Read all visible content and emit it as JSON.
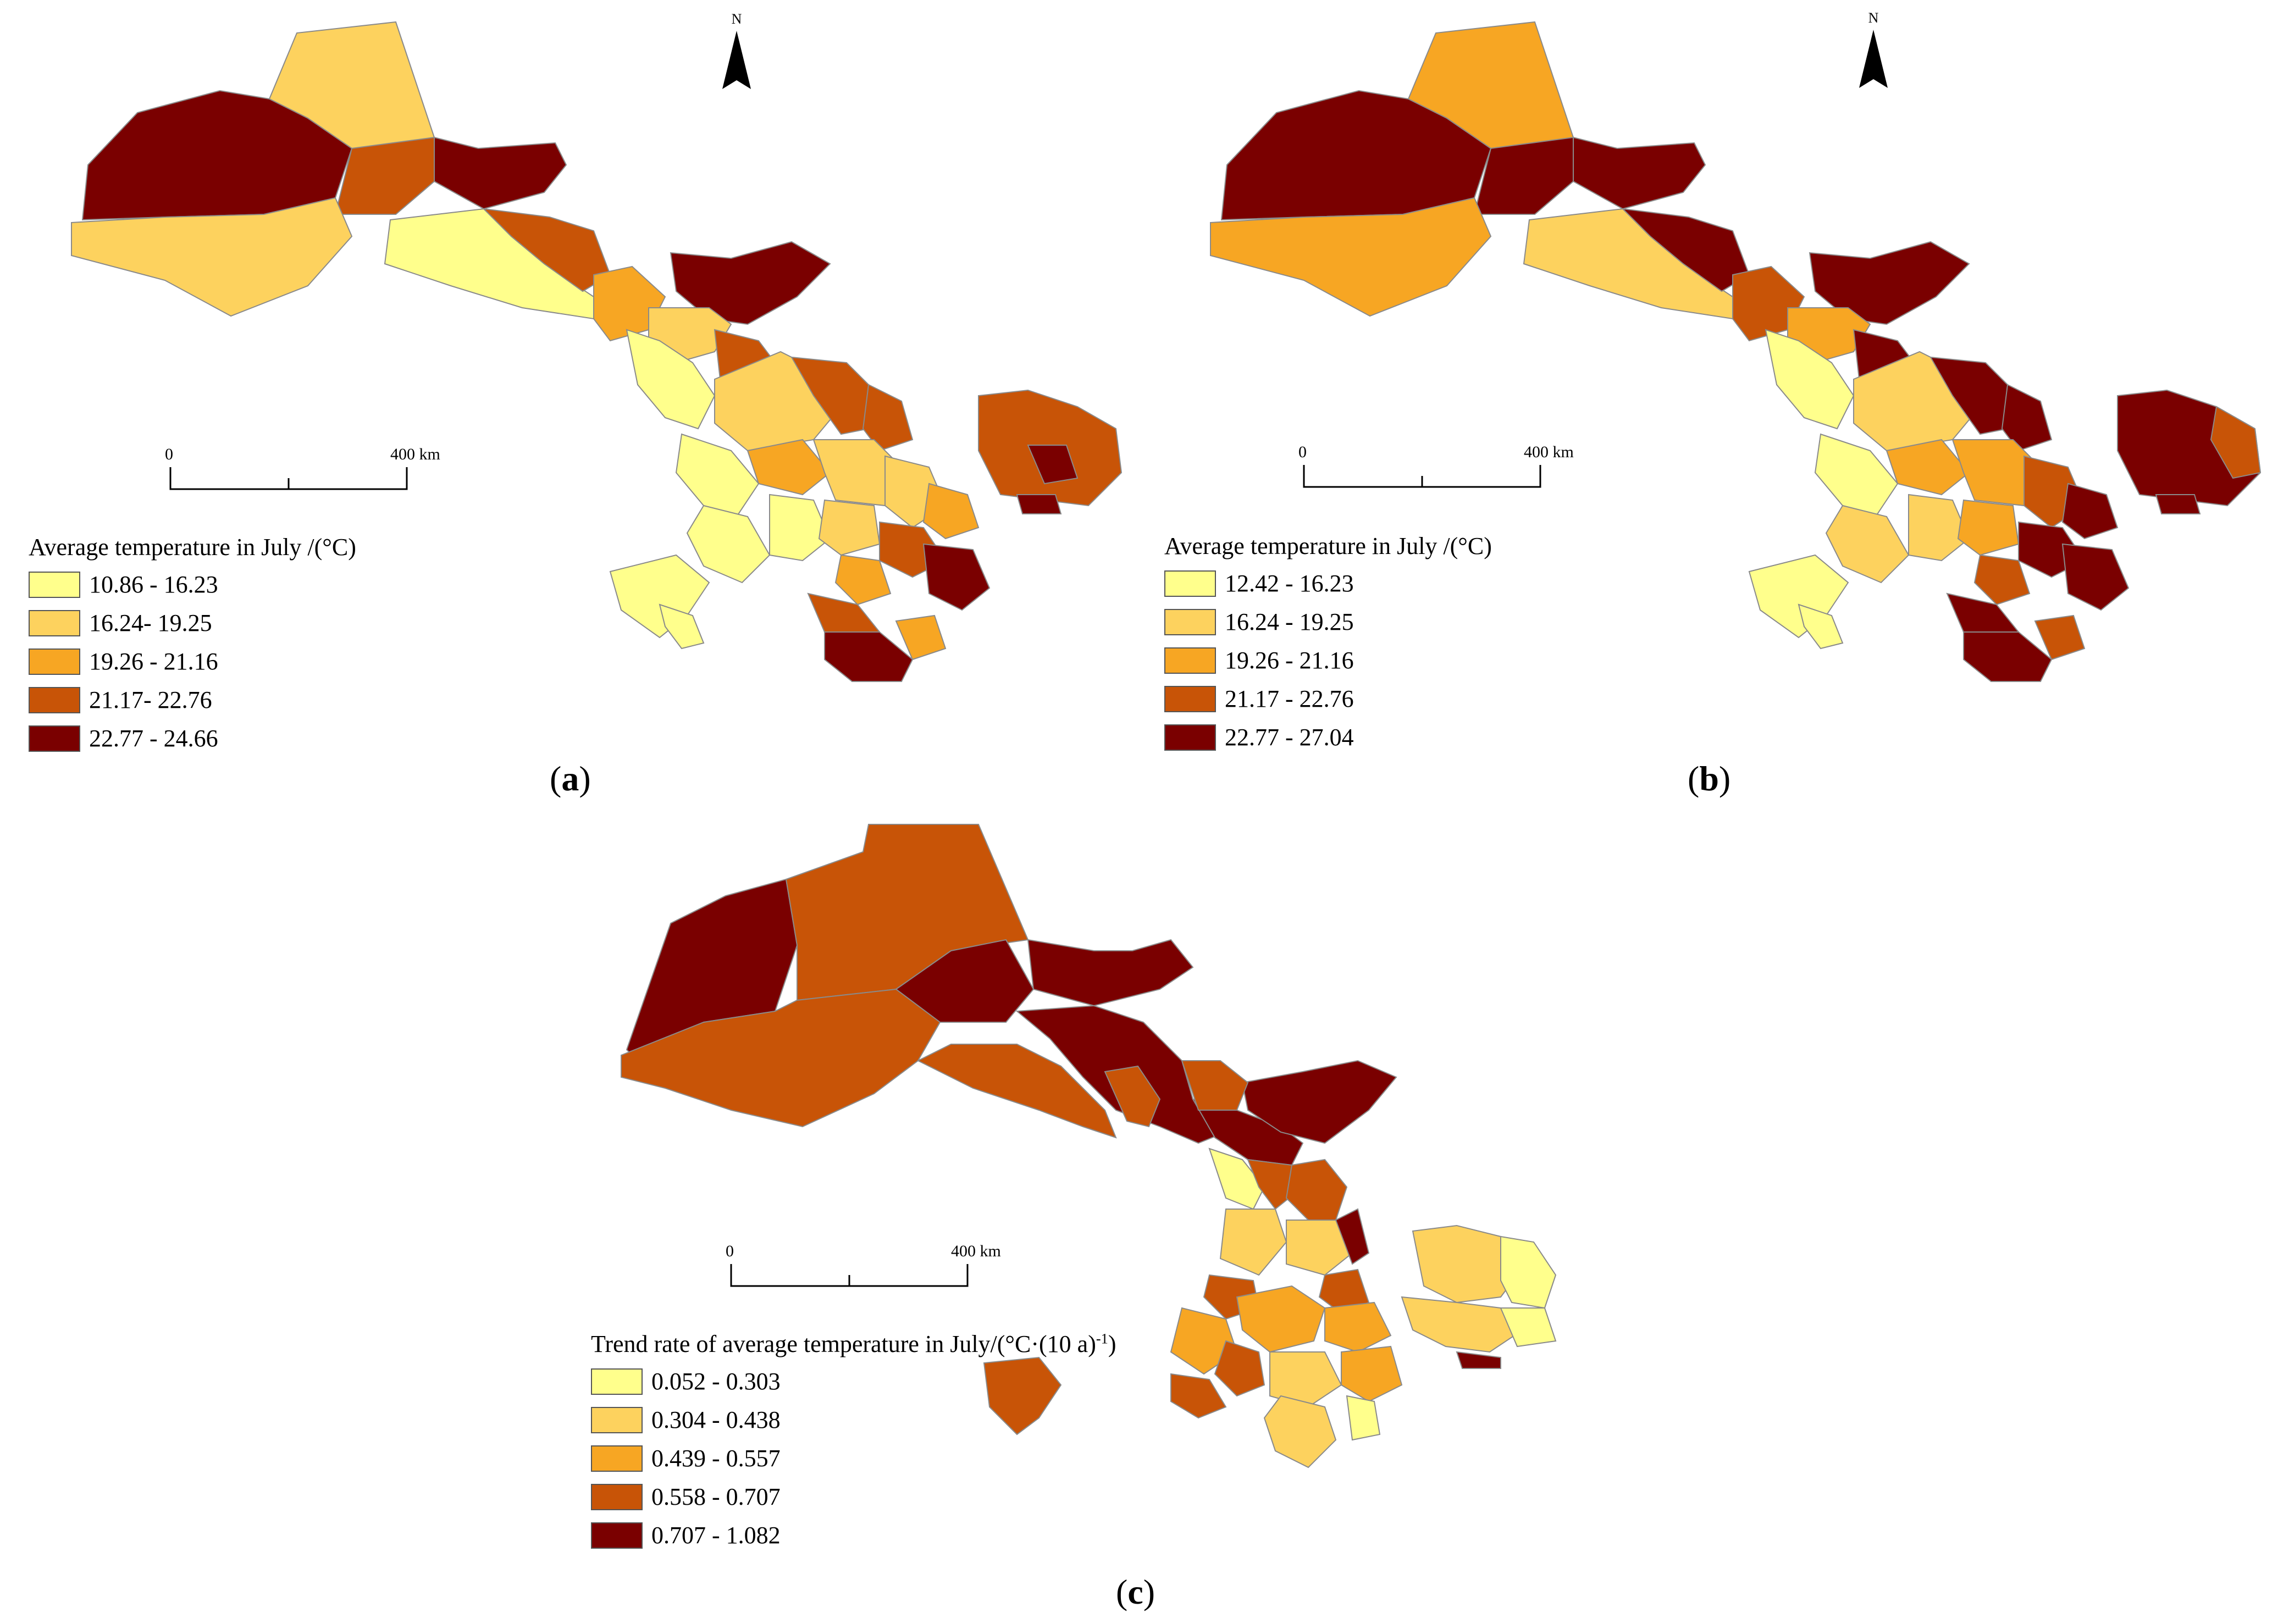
{
  "colors": {
    "c1": "#ffff8c",
    "c2": "#fdd25e",
    "c3": "#f7a623",
    "c4": "#c85407",
    "c5": "#7a0000",
    "boundary": "#8a8a8a"
  },
  "panels": [
    {
      "id": "a",
      "label": "a",
      "north_label": "N",
      "scale": {
        "start": "0",
        "end": "400 km"
      },
      "legend": {
        "title": "Average temperature in July /(°C)",
        "classes": [
          {
            "range": "10.86 - 16.23",
            "color": "#ffff8c"
          },
          {
            "range": "16.24- 19.25",
            "color": "#fdd25e"
          },
          {
            "range": "19.26 - 21.16",
            "color": "#f7a623"
          },
          {
            "range": "21.17- 22.76",
            "color": "#c85407"
          },
          {
            "range": "22.77 - 24.66",
            "color": "#7a0000"
          }
        ]
      }
    },
    {
      "id": "b",
      "label": "b",
      "north_label": "N",
      "scale": {
        "start": "0",
        "end": "400 km"
      },
      "legend": {
        "title": "Average temperature in July /(°C)",
        "classes": [
          {
            "range": "12.42 - 16.23",
            "color": "#ffff8c"
          },
          {
            "range": "16.24 - 19.25",
            "color": "#fdd25e"
          },
          {
            "range": "19.26 - 21.16",
            "color": "#f7a623"
          },
          {
            "range": "21.17 - 22.76",
            "color": "#c85407"
          },
          {
            "range": "22.77 - 27.04",
            "color": "#7a0000"
          }
        ]
      }
    },
    {
      "id": "c",
      "label": "c",
      "scale": {
        "start": "0",
        "end": "400 km"
      },
      "legend": {
        "title_main": "Trend rate of average temperature in July/(°C·(10 a)",
        "title_sup": "-1",
        "title_end": ")",
        "classes": [
          {
            "range": "0.052 - 0.303",
            "color": "#ffff8c"
          },
          {
            "range": "0.304 - 0.438",
            "color": "#fdd25e"
          },
          {
            "range": "0.439 - 0.557",
            "color": "#f7a623"
          },
          {
            "range": "0.558 - 0.707",
            "color": "#c85407"
          },
          {
            "range": "0.707 - 1.082",
            "color": "#7a0000"
          }
        ]
      }
    }
  ]
}
